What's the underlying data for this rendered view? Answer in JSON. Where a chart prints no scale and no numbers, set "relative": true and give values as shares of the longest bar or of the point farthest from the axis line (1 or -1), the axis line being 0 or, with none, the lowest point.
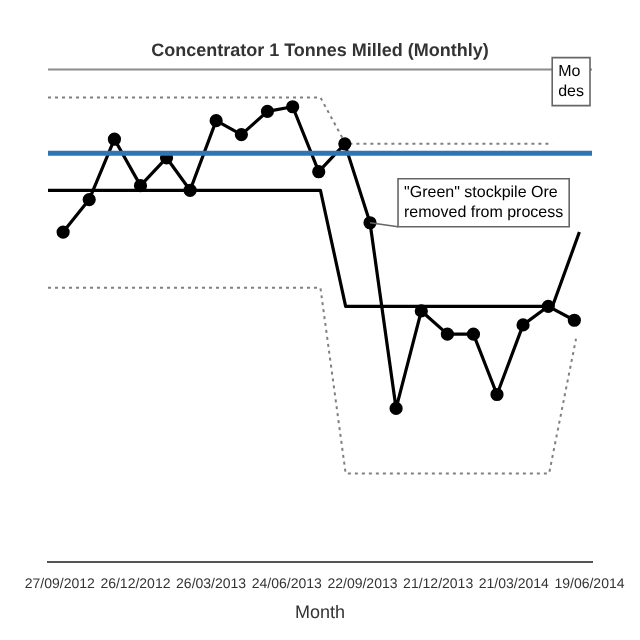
{
  "chart_data": {
    "type": "line",
    "title": "Concentrator 1 Tonnes Milled (Monthly)",
    "xlabel": "Month",
    "relative": true,
    "tick_labels": "x",
    "x": [
      "2012-10",
      "2012-11",
      "2012-12",
      "2013-01",
      "2013-02",
      "2013-03",
      "2013-04",
      "2013-05",
      "2013-06",
      "2013-07",
      "2013-08",
      "2013-09",
      "2013-10",
      "2013-11",
      "2013-12",
      "2014-01",
      "2014-02",
      "2014-03",
      "2014-04",
      "2014-05",
      "2014-06"
    ],
    "xlim": [
      "2012-09-13",
      "2014-06-22"
    ],
    "xticks": [
      {
        "value": "2012-09-27",
        "label": "27/09/2012"
      },
      {
        "value": "2012-12-26",
        "label": "26/12/2012"
      },
      {
        "value": "2013-03-26",
        "label": "26/03/2013"
      },
      {
        "value": "2013-06-24",
        "label": "24/06/2013"
      },
      {
        "value": "2013-09-22",
        "label": "22/09/2013"
      },
      {
        "value": "2013-12-21",
        "label": "21/12/2013"
      },
      {
        "value": "2014-03-21",
        "label": "21/03/2014"
      },
      {
        "value": "2014-06-19",
        "label": "19/06/2014"
      }
    ],
    "series": [
      {
        "color": "#000000",
        "marker": "circle",
        "line_style": "solid",
        "values": [
          0.71,
          0.78,
          0.91,
          0.81,
          0.87,
          0.8,
          0.95,
          0.92,
          0.97,
          0.98,
          0.84,
          0.9,
          0.73,
          0.33,
          0.54,
          0.49,
          0.49,
          0.36,
          0.51,
          0.55,
          0.52
        ]
      },
      {
        "color": "#000000",
        "marker": "none",
        "line_style": "solid",
        "x": [
          "2012-09-13",
          "2013-08-03",
          "2013-09-02",
          "2014-05-06",
          "2014-06-07"
        ],
        "values": [
          0.8,
          0.8,
          0.55,
          0.55,
          0.71
        ]
      },
      {
        "color": "#808080",
        "marker": "none",
        "line_style": "dotted",
        "x": [
          "2012-09-13",
          "2013-08-03",
          "2013-09-02",
          "2014-05-06"
        ],
        "values": [
          1.0,
          1.0,
          0.9,
          0.9
        ]
      },
      {
        "color": "#808080",
        "marker": "none",
        "line_style": "dotted",
        "x": [
          "2012-09-13",
          "2013-08-03",
          "2013-09-02",
          "2014-05-02",
          "2014-06-03"
        ],
        "values": [
          0.59,
          0.59,
          0.19,
          0.19,
          0.48
        ]
      }
    ],
    "ref_lines": [
      {
        "axis": "y",
        "value": 0.88,
        "color": "#2e75b6"
      }
    ],
    "annotations": [
      {
        "text": "\"Green\" stockpile Ore removed from process",
        "x": "2013-10",
        "y": 0.73
      },
      "Mo des"
    ]
  }
}
